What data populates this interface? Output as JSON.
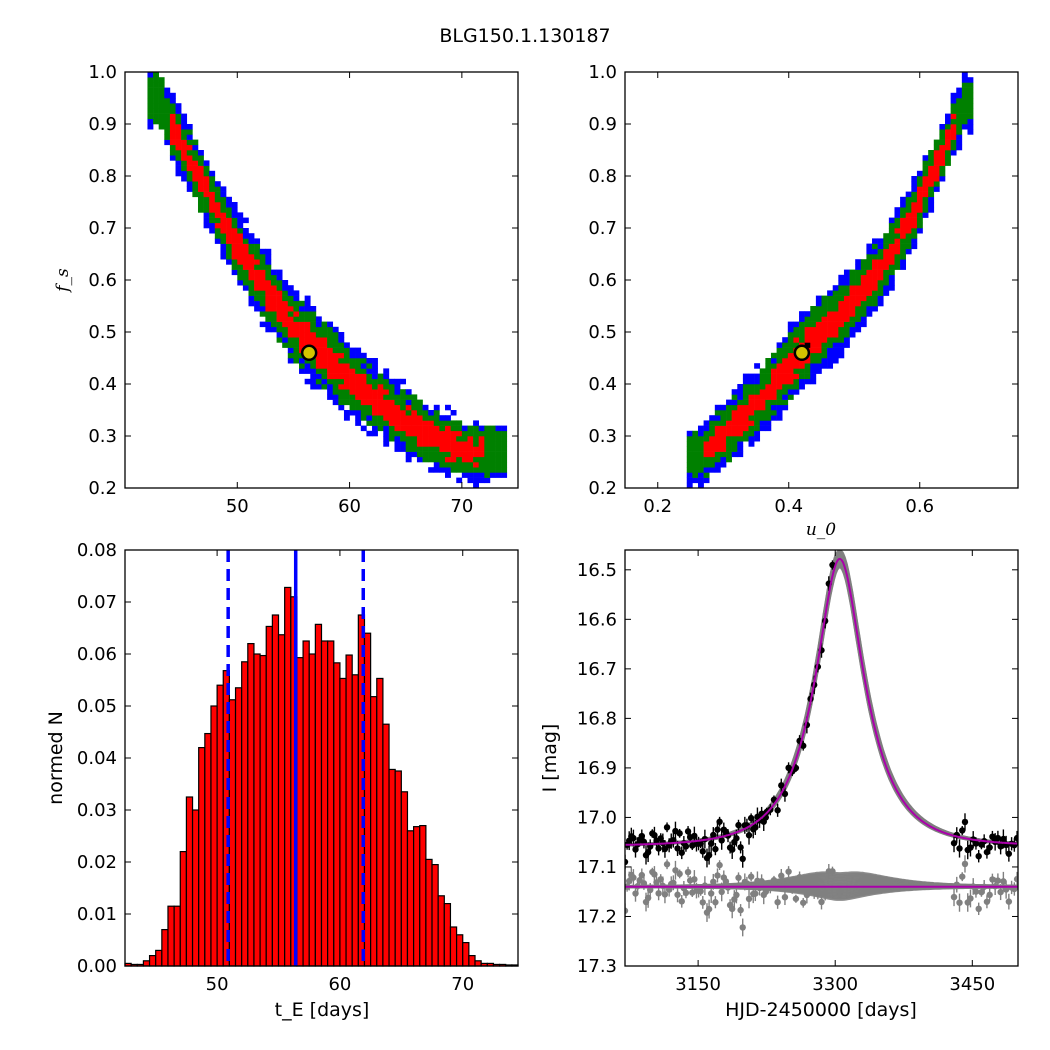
{
  "title": "BLG150.1.130187",
  "chart_data": [
    {
      "type": "heatmap",
      "panel": "top-left",
      "xlabel": "",
      "ylabel": "f_s",
      "xlim": [
        40,
        75
      ],
      "ylim": [
        0.2,
        1.0
      ],
      "xticks": [
        "50",
        "60",
        "70"
      ],
      "yticks": [
        "0.2",
        "0.3",
        "0.4",
        "0.5",
        "0.6",
        "0.7",
        "0.8",
        "0.9",
        "1.0"
      ],
      "levels": {
        "outer": "#0000ff",
        "middle": "#008000",
        "inner": "#ff0000",
        "peak": "#000000"
      },
      "best_fit": {
        "x": 56.4,
        "y": 0.46
      },
      "ridge": [
        [
          43,
          0.95
        ],
        [
          45,
          0.86
        ],
        [
          47,
          0.78
        ],
        [
          49,
          0.7
        ],
        [
          51,
          0.63
        ],
        [
          53,
          0.57
        ],
        [
          55,
          0.51
        ],
        [
          57,
          0.47
        ],
        [
          59,
          0.43
        ],
        [
          61,
          0.39
        ],
        [
          63,
          0.36
        ],
        [
          65,
          0.33
        ],
        [
          67,
          0.3
        ],
        [
          69,
          0.285
        ],
        [
          71,
          0.27
        ],
        [
          73,
          0.27
        ]
      ]
    },
    {
      "type": "heatmap",
      "panel": "top-right",
      "xlabel": "u_0",
      "ylabel": "",
      "xlim": [
        0.15,
        0.75
      ],
      "ylim": [
        0.2,
        1.0
      ],
      "xticks": [
        "0.2",
        "0.4",
        "0.6"
      ],
      "yticks": [
        "0.2",
        "0.3",
        "0.4",
        "0.5",
        "0.6",
        "0.7",
        "0.8",
        "0.9",
        "1.0"
      ],
      "levels": {
        "outer": "#0000ff",
        "middle": "#008000",
        "inner": "#ff0000",
        "peak": "#000000"
      },
      "best_fit": {
        "x": 0.42,
        "y": 0.46
      },
      "ridge": [
        [
          0.26,
          0.26
        ],
        [
          0.3,
          0.3
        ],
        [
          0.34,
          0.35
        ],
        [
          0.38,
          0.4
        ],
        [
          0.42,
          0.46
        ],
        [
          0.46,
          0.51
        ],
        [
          0.5,
          0.56
        ],
        [
          0.54,
          0.62
        ],
        [
          0.58,
          0.7
        ],
        [
          0.61,
          0.78
        ],
        [
          0.64,
          0.86
        ],
        [
          0.67,
          0.94
        ]
      ]
    },
    {
      "type": "bar",
      "panel": "bottom-left",
      "xlabel": "t_E [days]",
      "ylabel": "normed N",
      "xlim": [
        42.5,
        74.5
      ],
      "ylim": [
        0,
        0.08
      ],
      "xticks": [
        "50",
        "60",
        "70"
      ],
      "yticks": [
        "0.00",
        "0.01",
        "0.02",
        "0.03",
        "0.04",
        "0.05",
        "0.06",
        "0.07",
        "0.08"
      ],
      "bar_color": "#ff0000",
      "bin_start": 42.5,
      "bin_width": 0.5,
      "values": [
        0.0005,
        0.0003,
        0.0003,
        0.001,
        0.002,
        0.003,
        0.007,
        0.0115,
        0.0115,
        0.022,
        0.0325,
        0.03,
        0.042,
        0.0447,
        0.05,
        0.054,
        0.0568,
        0.0512,
        0.0535,
        0.0585,
        0.062,
        0.06,
        0.0597,
        0.0653,
        0.0675,
        0.0637,
        0.0728,
        0.071,
        0.0593,
        0.0625,
        0.06,
        0.0657,
        0.0625,
        0.0625,
        0.0583,
        0.0553,
        0.0598,
        0.056,
        0.0675,
        0.064,
        0.0518,
        0.0553,
        0.0465,
        0.0378,
        0.0375,
        0.0335,
        0.026,
        0.0268,
        0.027,
        0.0205,
        0.0195,
        0.0135,
        0.012,
        0.0075,
        0.006,
        0.0045,
        0.002,
        0.001,
        0.0005,
        0.0005,
        0.0003,
        0.0003,
        0.0002,
        0.0002
      ],
      "vlines": [
        {
          "x": 56.4,
          "style": "solid",
          "color": "#0000ff"
        },
        {
          "x": 50.9,
          "style": "dashed",
          "color": "#0000ff"
        },
        {
          "x": 61.9,
          "style": "dashed",
          "color": "#0000ff"
        }
      ]
    },
    {
      "type": "scatter",
      "panel": "bottom-right",
      "xlabel": "HJD-2450000 [days]",
      "ylabel": "I [mag]",
      "xlim": [
        3070,
        3500
      ],
      "ylim": [
        17.3,
        16.46
      ],
      "xticks": [
        "3150",
        "3300",
        "3450"
      ],
      "yticks": [
        "16.5",
        "16.6",
        "16.7",
        "16.8",
        "16.9",
        "17.0",
        "17.1",
        "17.2",
        "17.3"
      ],
      "model": {
        "t0": 3305,
        "tE": 56.4,
        "u0": 0.42,
        "fs": 0.46,
        "baseline": 17.058,
        "color": "#aa00aa"
      },
      "residual_offset": 17.14,
      "data_color": "#000000",
      "residual_color": "#808080",
      "band_color": "#808080"
    }
  ]
}
